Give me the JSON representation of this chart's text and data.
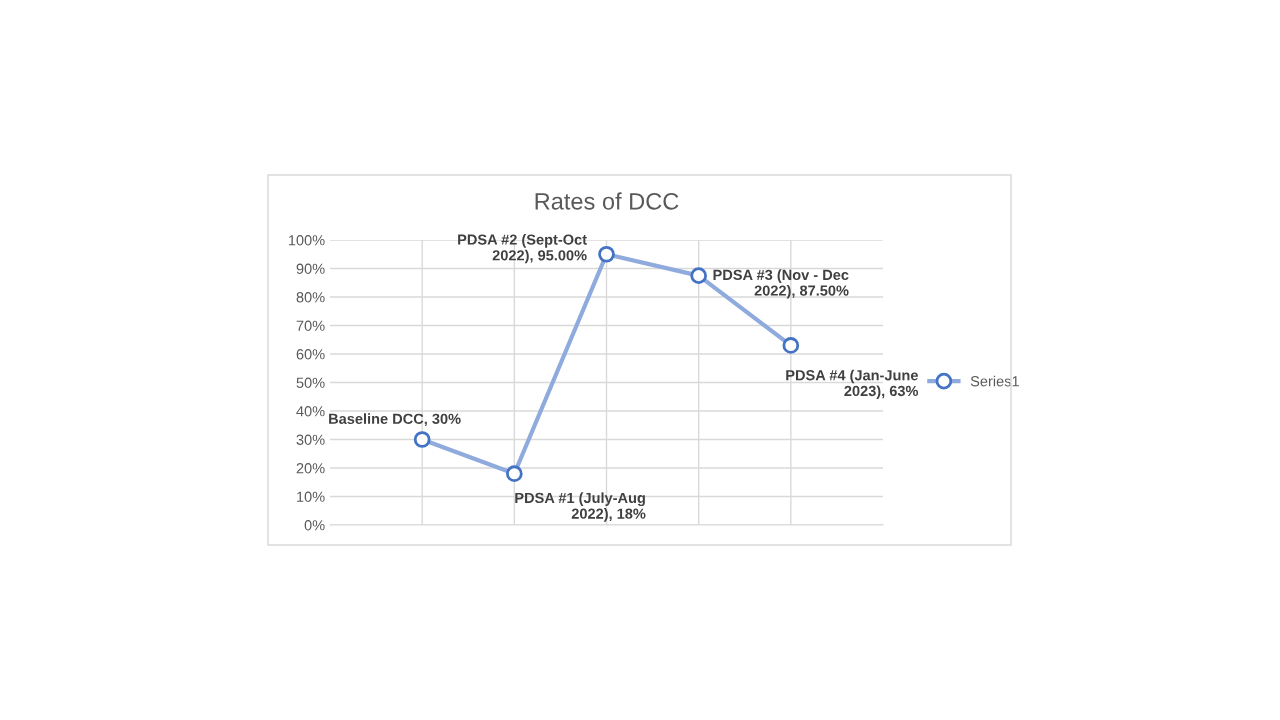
{
  "chart_data": {
    "type": "line",
    "title": "Rates of DCC",
    "categories": [
      null,
      null,
      null,
      null,
      null
    ],
    "series": [
      {
        "name": "Series1",
        "color": "#8faadc",
        "values": [
          30,
          18,
          95,
          87.5,
          63
        ],
        "value_labels": [
          "Baseline DCC, 30%",
          "PDSA #1 (July-Aug 2022), 18%",
          "PDSA #2 (Sept-Oct 2022), 95.00%",
          "PDSA #3 (Nov - Dec 2022), 87.50%",
          "PDSA #4 (Jan-June 2023), 63%"
        ]
      }
    ],
    "ylim": [
      0,
      100
    ],
    "yticks": [
      {
        "value": 0,
        "label": "0%"
      },
      {
        "value": 10,
        "label": "10%"
      },
      {
        "value": 20,
        "label": "20%"
      },
      {
        "value": 30,
        "label": "30%"
      },
      {
        "value": 40,
        "label": "40%"
      },
      {
        "value": 50,
        "label": "50%"
      },
      {
        "value": 60,
        "label": "60%"
      },
      {
        "value": 70,
        "label": "70%"
      },
      {
        "value": 80,
        "label": "80%"
      },
      {
        "value": 90,
        "label": "90%"
      },
      {
        "value": 100,
        "label": "100%"
      }
    ],
    "grid": true,
    "legend": "right",
    "marker": "circle",
    "line_style": "solid",
    "tick_labels": "y"
  }
}
